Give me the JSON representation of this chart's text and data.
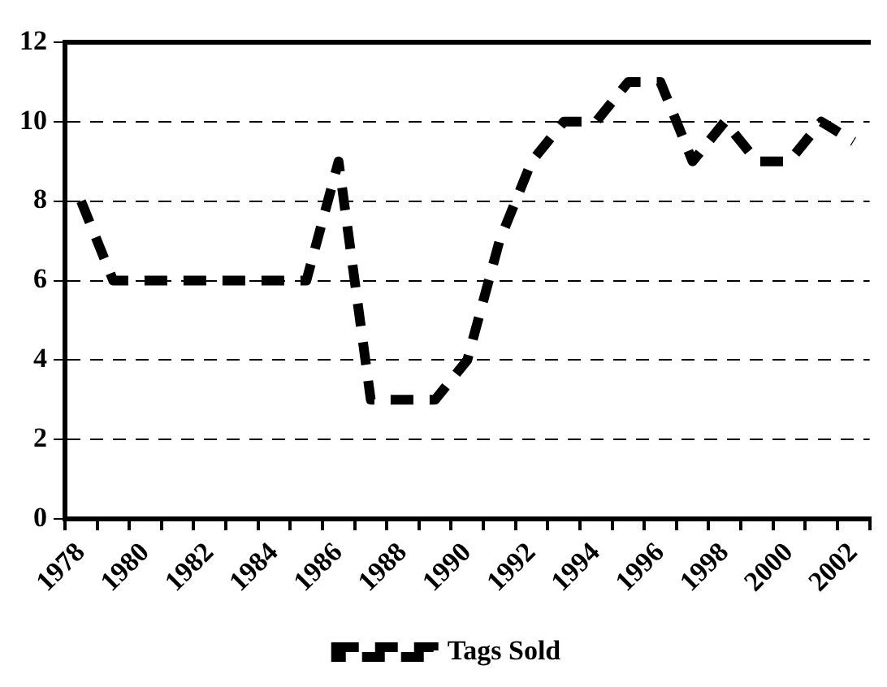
{
  "chart_data": {
    "type": "line",
    "categories": [
      "1978",
      null,
      "1980",
      null,
      "1982",
      null,
      "1984",
      null,
      "1986",
      null,
      "1988",
      null,
      "1990",
      null,
      "1992",
      null,
      "1994",
      null,
      "1996",
      null,
      "1998",
      null,
      "2000",
      null,
      "2002"
    ],
    "series": [
      {
        "name": "Tags Sold",
        "color": "#000000",
        "values": [
          8,
          6,
          6,
          6,
          6,
          6,
          6,
          6,
          9,
          3,
          3,
          3,
          4,
          7,
          9,
          10,
          10,
          11,
          11,
          9,
          10,
          9,
          9,
          10,
          9.5
        ]
      }
    ],
    "ylim": [
      0,
      12
    ],
    "yticks": [
      0,
      2,
      4,
      6,
      8,
      10,
      12
    ],
    "grid": "y",
    "legend": "bottom",
    "line_style": "dashed",
    "marker": "none"
  }
}
